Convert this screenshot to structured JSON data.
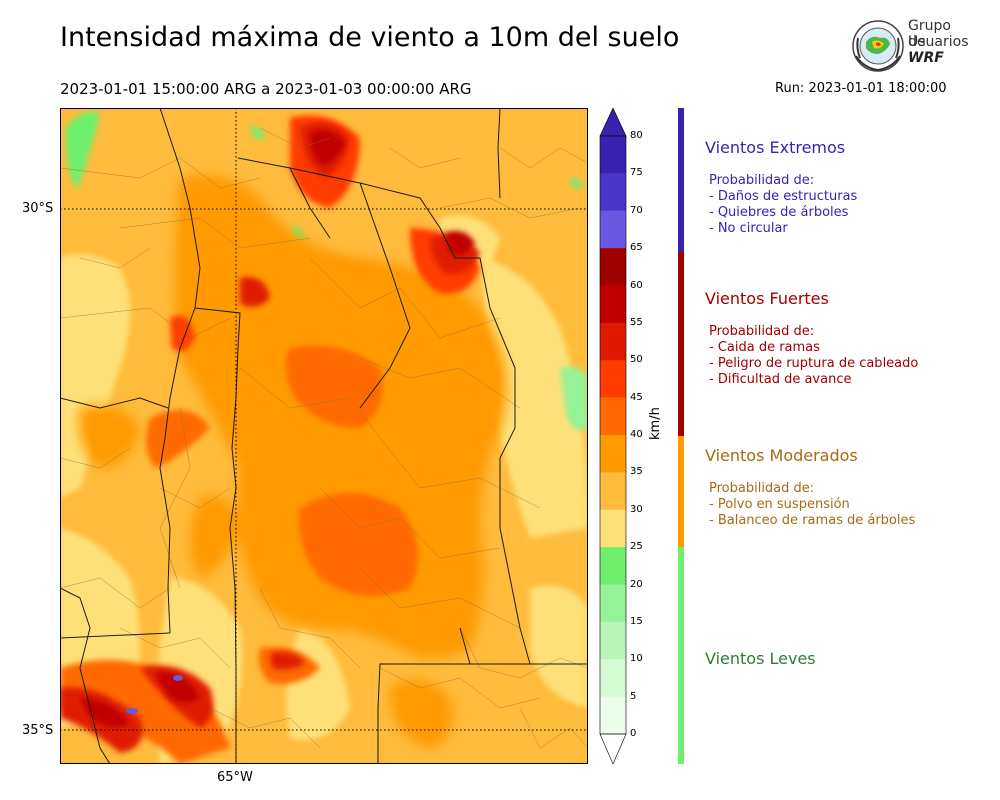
{
  "header": {
    "title": "Intensidad máxima de viento a 10m del suelo",
    "period": "2023-01-01 15:00:00 ARG  a  2023-01-03 00:00:00 ARG",
    "run": "Run: 2023-01-01 18:00:00"
  },
  "logo": {
    "line1": "Grupo de",
    "line2": "Usuarios",
    "line3": "WRF"
  },
  "axes": {
    "lat_labels": [
      "30°S",
      "35°S"
    ],
    "lon_labels": [
      "65°W"
    ]
  },
  "colorbar": {
    "unit": "km/h",
    "ticks": [
      "80",
      "75",
      "70",
      "65",
      "60",
      "55",
      "50",
      "45",
      "40",
      "35",
      "30",
      "25",
      "20",
      "15",
      "10",
      "5",
      "0"
    ],
    "colors": [
      "#3a22b0",
      "#4a36c8",
      "#6a58e0",
      "#a00000",
      "#c00000",
      "#e01a00",
      "#ff3c00",
      "#ff6a00",
      "#ff9a00",
      "#ffbb3c",
      "#ffe078",
      "#6ef06e",
      "#96f296",
      "#b8f6b8",
      "#d4fad4",
      "#ecfdec"
    ]
  },
  "map": {
    "colors": {
      "light_yellow": "#ffe078",
      "light_orange": "#ffbb3c",
      "orange": "#ff9a00",
      "dark_orange": "#ff6a00",
      "red_orange": "#ff3c00",
      "red": "#e01a00",
      "dark_red": "#c00000",
      "green": "#6ef06e",
      "light_green": "#96f296",
      "purple": "#6a58e0"
    }
  },
  "categories": [
    {
      "title": "Vientos Extremos",
      "color": "#3a22b0",
      "intro": "Probabilidad de:",
      "items": [
        "- Daños de estructuras",
        "- Quiebres de árboles",
        "- No circular"
      ]
    },
    {
      "title": "Vientos Fuertes",
      "color": "#a00000",
      "intro": "Probabilidad de:",
      "items": [
        "- Caida de ramas",
        "- Peligro de ruptura de cableado",
        "- Dificultad de avance"
      ]
    },
    {
      "title": "Vientos Moderados",
      "color": "#a86a10",
      "intro": "Probabilidad de:",
      "items": [
        "- Polvo en suspensión",
        "- Balanceo de ramas de árboles"
      ]
    },
    {
      "title": "Vientos Leves",
      "color": "#2e7d32",
      "intro": "",
      "items": []
    }
  ],
  "bands": [
    "#3a22b0",
    "#a00000",
    "#ff9a00",
    "#6ef06e"
  ]
}
